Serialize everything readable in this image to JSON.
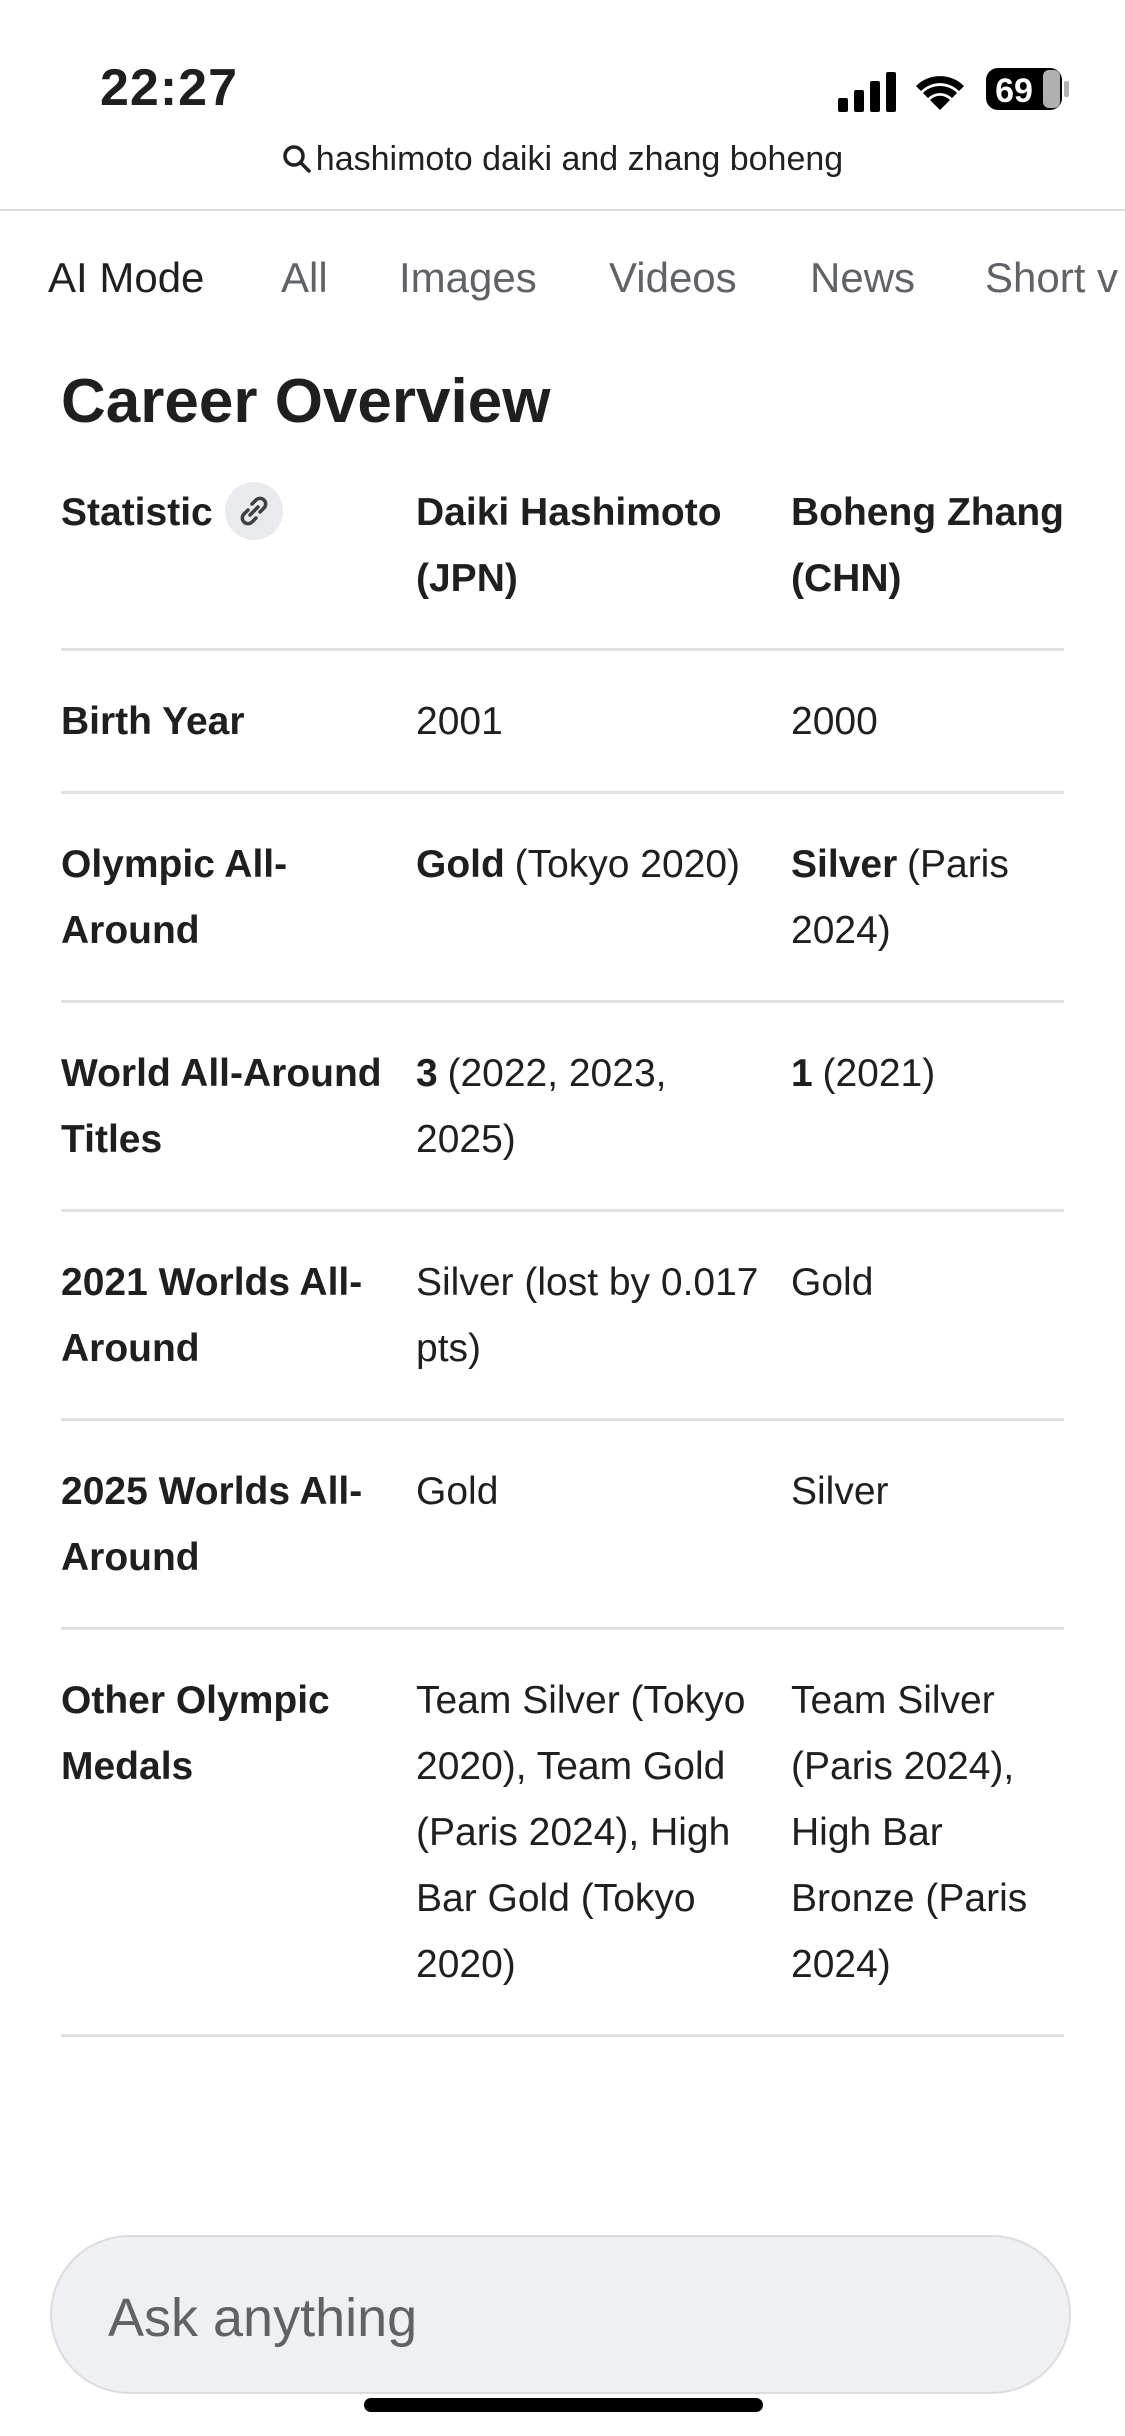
{
  "status": {
    "time": "22:27",
    "battery": "69"
  },
  "search": {
    "query": "hashimoto daiki and zhang boheng"
  },
  "tabs": [
    "AI Mode",
    "All",
    "Images",
    "Videos",
    "News",
    "Short v"
  ],
  "heading": "Career Overview",
  "table": {
    "headers": [
      "Statistic",
      "Daiki Hashimoto (JPN)",
      "Boheng Zhang (CHN)"
    ],
    "rows": [
      [
        "Birth Year",
        "2001",
        "2000"
      ],
      [
        "Olympic All-Around",
        {
          "strong": "Gold",
          "rest": "(Tokyo 2020)"
        },
        {
          "strong": "Silver",
          "rest": "(Paris 2024)"
        }
      ],
      [
        "World All-Around Titles",
        {
          "strong": "3",
          "rest": "(2022, 2023, 2025)"
        },
        {
          "strong": "1",
          "rest": "(2021)"
        }
      ],
      [
        "2021 Worlds All-Around",
        "Silver (lost by 0.017 pts)",
        "Gold"
      ],
      [
        "2025 Worlds All-Around",
        "Gold",
        "Silver"
      ],
      [
        "Other Olympic Medals",
        "Team Silver (Tokyo 2020), Team Gold (Paris 2024), High Bar Gold (Tokyo 2020)",
        "Team Silver (Paris 2024), High Bar Bronze (Paris 2024)"
      ]
    ]
  },
  "input": {
    "placeholder": "Ask anything"
  }
}
